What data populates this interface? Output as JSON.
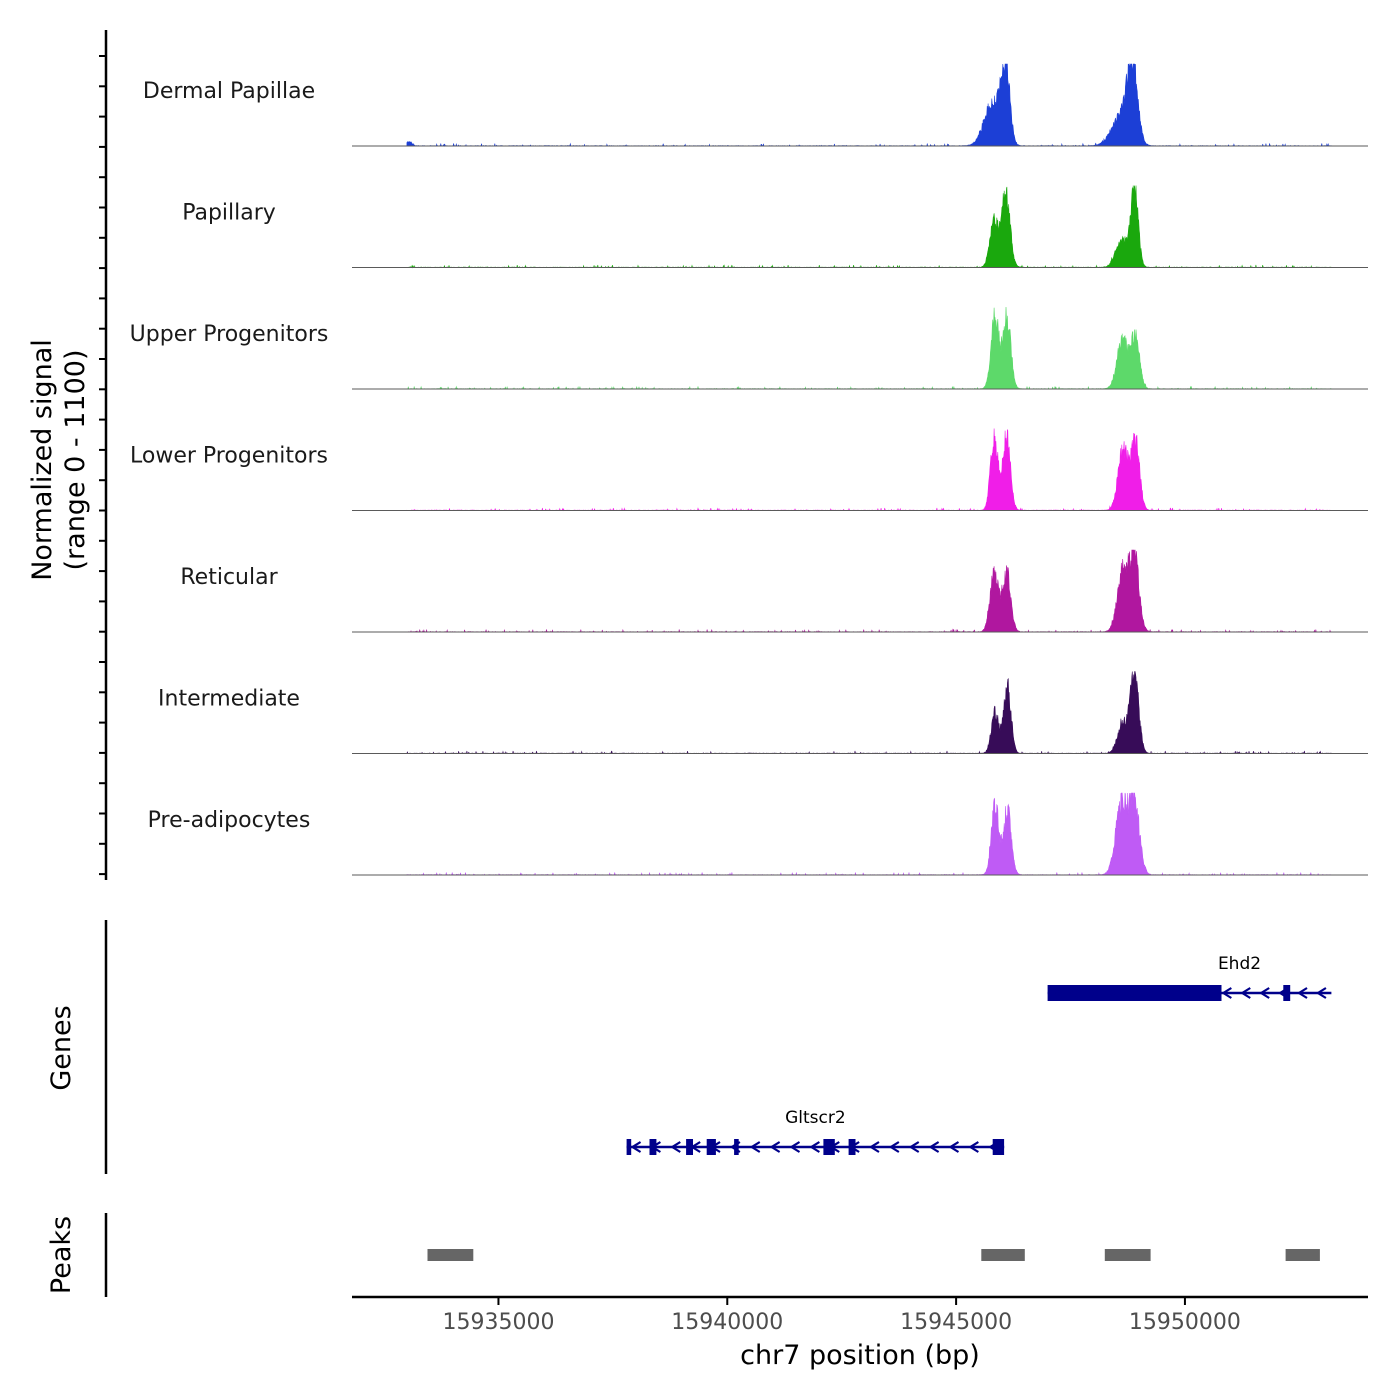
{
  "chart_data": {
    "type": "area",
    "title": "",
    "chromosome": "chr7",
    "xlabel": "chr7 position (bp)",
    "ylabel_line1": "Normalized signal",
    "ylabel_line2": "(range 0 - 1100)",
    "xlim": [
      15931800,
      15954000
    ],
    "ylim": [
      0,
      1100
    ],
    "x_ticks": [
      15935000,
      15940000,
      15945000,
      15950000
    ],
    "x_tick_labels": [
      "15935000",
      "15940000",
      "15945000",
      "15950000"
    ],
    "signal_range": [
      15933000,
      15953200
    ],
    "tracks": [
      {
        "name": "Dermal Papillae",
        "color": "#1c3fd6",
        "peaks": [
          [
            15933050,
            55,
            60
          ],
          [
            15945800,
            180,
            600
          ],
          [
            15946080,
            90,
            1050
          ],
          [
            15948600,
            200,
            400
          ],
          [
            15948850,
            110,
            1080
          ]
        ]
      },
      {
        "name": "Papillary",
        "color": "#1aa80d",
        "peaks": [
          [
            15945830,
            90,
            620
          ],
          [
            15946090,
            90,
            1020
          ],
          [
            15948620,
            130,
            380
          ],
          [
            15948900,
            80,
            1040
          ]
        ]
      },
      {
        "name": "Upper Progenitors",
        "color": "#5dd96a",
        "peaks": [
          [
            15945850,
            85,
            980
          ],
          [
            15946110,
            85,
            1000
          ],
          [
            15948640,
            120,
            680
          ],
          [
            15948920,
            90,
            700
          ]
        ]
      },
      {
        "name": "Lower Progenitors",
        "color": "#f01ee8",
        "peaks": [
          [
            15945830,
            80,
            1000
          ],
          [
            15946100,
            85,
            1000
          ],
          [
            15948650,
            110,
            830
          ],
          [
            15948920,
            90,
            920
          ]
        ]
      },
      {
        "name": "Reticular",
        "color": "#b0179f",
        "peaks": [
          [
            15945830,
            90,
            780
          ],
          [
            15946100,
            90,
            820
          ],
          [
            15948650,
            120,
            860
          ],
          [
            15948900,
            100,
            1000
          ]
        ]
      },
      {
        "name": "Intermediate",
        "color": "#370c58",
        "peaks": [
          [
            15945850,
            80,
            560
          ],
          [
            15946120,
            80,
            920
          ],
          [
            15948640,
            110,
            420
          ],
          [
            15948900,
            90,
            1100
          ]
        ]
      },
      {
        "name": "Pre-adipocytes",
        "color": "#bf5bf5",
        "peaks": [
          [
            15945850,
            80,
            960
          ],
          [
            15946120,
            85,
            880
          ],
          [
            15948620,
            130,
            980
          ],
          [
            15948900,
            110,
            960
          ]
        ]
      }
    ],
    "genes": [
      {
        "name": "Ehd2",
        "strand": "-",
        "start": 15947000,
        "end": 15953200,
        "exons": [
          [
            15947000,
            15950800
          ],
          [
            15952150,
            15952300
          ]
        ]
      },
      {
        "name": "Gltscr2",
        "strand": "-",
        "start": 15937800,
        "end": 15946050,
        "exons": [
          [
            15937800,
            15937900
          ],
          [
            15938300,
            15938450
          ],
          [
            15939100,
            15939250
          ],
          [
            15939550,
            15939750
          ],
          [
            15940150,
            15940250
          ],
          [
            15942100,
            15942350
          ],
          [
            15942650,
            15942800
          ],
          [
            15945800,
            15946050
          ]
        ]
      }
    ],
    "peaks": [
      {
        "start": 15933450,
        "end": 15934450
      },
      {
        "start": 15945550,
        "end": 15946500
      },
      {
        "start": 15948250,
        "end": 15949250
      },
      {
        "start": 15952200,
        "end": 15952950
      }
    ],
    "colors": {
      "gene": "#00008b",
      "peak": "#666666",
      "axis": "#000000",
      "baseline": "#5a5a5a"
    },
    "panel_titles": {
      "genes": "Genes",
      "peaks": "Peaks"
    }
  }
}
